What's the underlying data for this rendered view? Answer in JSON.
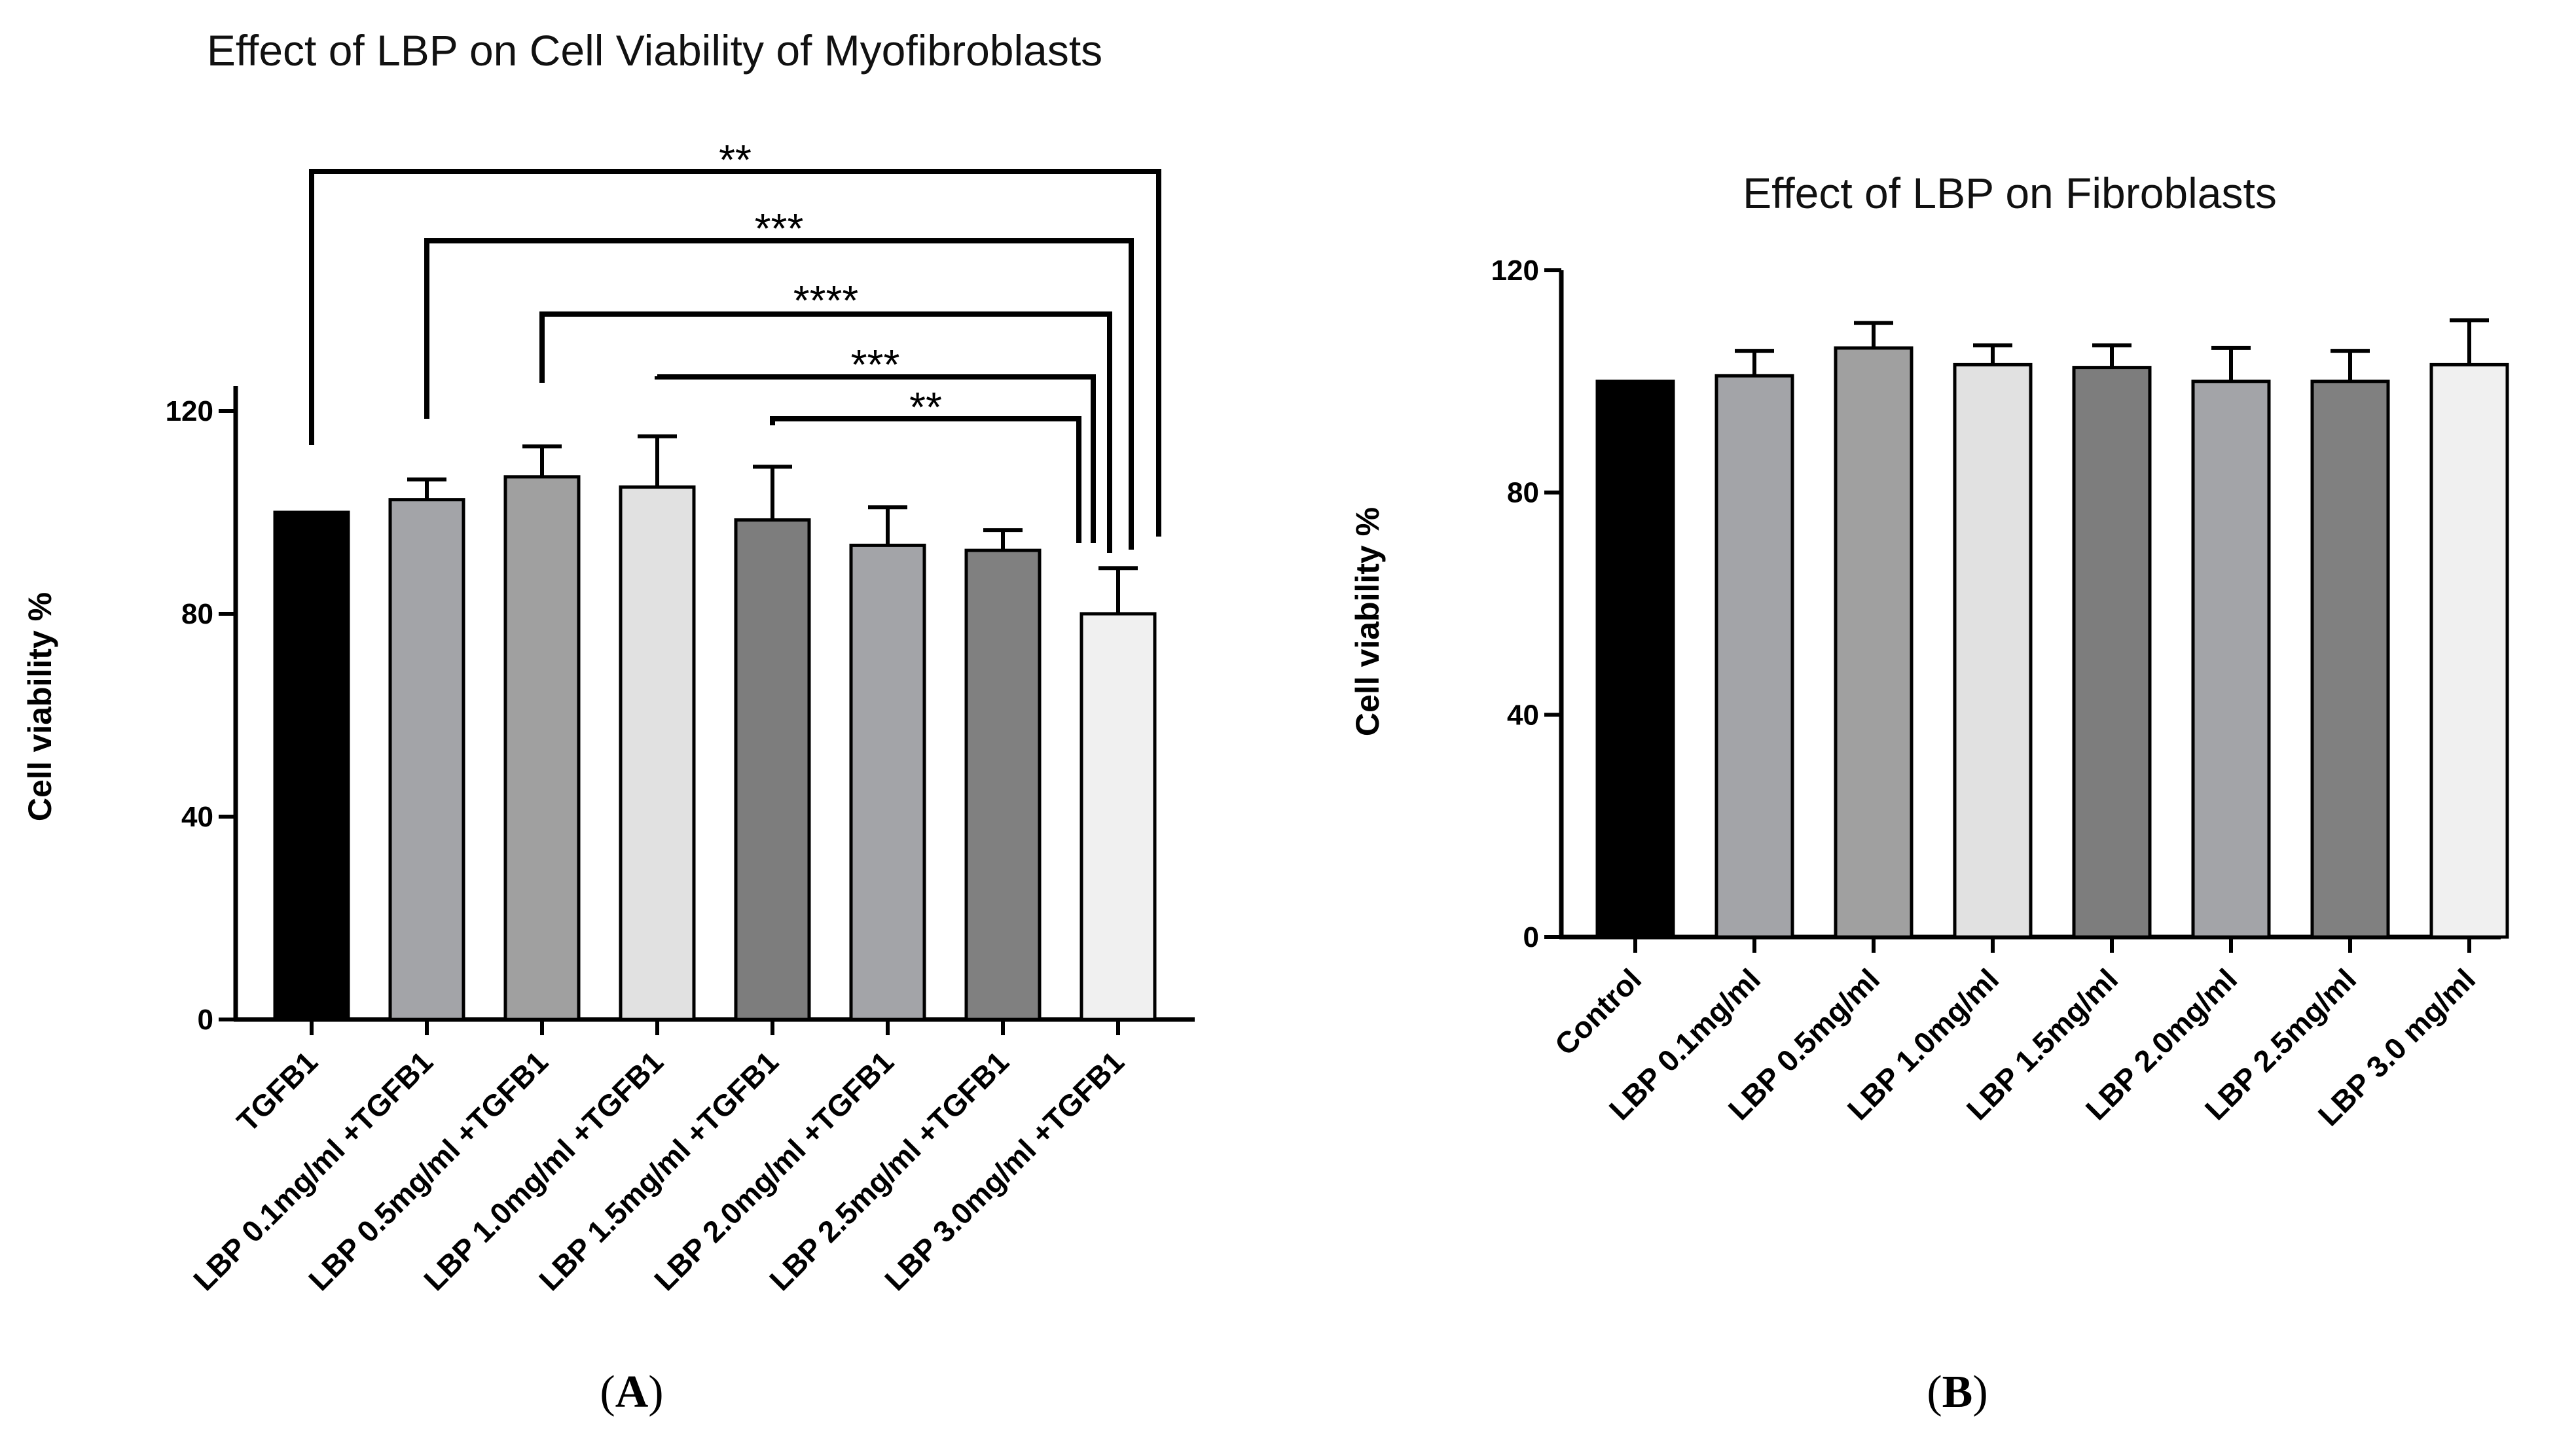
{
  "chart_data": [
    {
      "type": "bar",
      "panel_label": "(A)",
      "panel_letter": "A",
      "title": "Effect of LBP on Cell Viability of Myofibroblasts",
      "xlabel": "",
      "ylabel": "Cell viability %",
      "ylim": [
        0,
        125
      ],
      "yticks": [
        0,
        40,
        80,
        120
      ],
      "grid": false,
      "categories": [
        "TGFB1",
        "LBP 0.1mg/ml +TGFB1",
        "LBP 0.5mg/ml +TGFB1",
        "LBP 1.0mg/ml +TGFB1",
        "LBP 1.5mg/ml +TGFB1",
        "LBP 2.0mg/ml +TGFB1",
        "LBP 2.5mg/ml +TGFB1",
        "LBP 3.0mg/ml +TGFB1"
      ],
      "values": [
        100,
        102.5,
        107,
        105,
        98.5,
        93.5,
        92.5,
        80
      ],
      "error": [
        0,
        4,
        6,
        10,
        10.5,
        7.5,
        4,
        9
      ],
      "bar_colors": [
        "#000000",
        "#a3a4a8",
        "#a0a0a0",
        "#e1e1e1",
        "#7d7d7d",
        "#a3a4a8",
        "#808080",
        "#f0f0f0"
      ],
      "significance": [
        {
          "from": 0,
          "to": 7,
          "label": "**"
        },
        {
          "from": 1,
          "to": 7,
          "label": "***"
        },
        {
          "from": 2,
          "to": 7,
          "label": "****"
        },
        {
          "from": 3,
          "to": 7,
          "label": "***"
        },
        {
          "from": 4,
          "to": 7,
          "label": "**"
        }
      ]
    },
    {
      "type": "bar",
      "panel_label": "(B)",
      "panel_letter": "B",
      "title": "Effect of LBP on Fibroblasts",
      "xlabel": "",
      "ylabel": "Cell viability %",
      "ylim": [
        0,
        120
      ],
      "yticks": [
        0,
        40,
        80,
        120
      ],
      "grid": false,
      "categories": [
        "Control",
        "LBP 0.1mg/ml",
        "LBP 0.5mg/ml",
        "LBP 1.0mg/ml",
        "LBP 1.5mg/ml",
        "LBP 2.0mg/ml",
        "LBP 2.5mg/ml",
        "LBP 3.0 mg/ml"
      ],
      "values": [
        100,
        101,
        106,
        103,
        102.5,
        100,
        100,
        103
      ],
      "error": [
        0,
        4.5,
        4.5,
        3.5,
        4,
        6,
        5.5,
        8
      ],
      "bar_colors": [
        "#000000",
        "#a3a4a8",
        "#a0a0a0",
        "#e1e1e1",
        "#7d7d7d",
        "#a3a4a8",
        "#808080",
        "#f0f0f0"
      ],
      "significance": []
    }
  ]
}
